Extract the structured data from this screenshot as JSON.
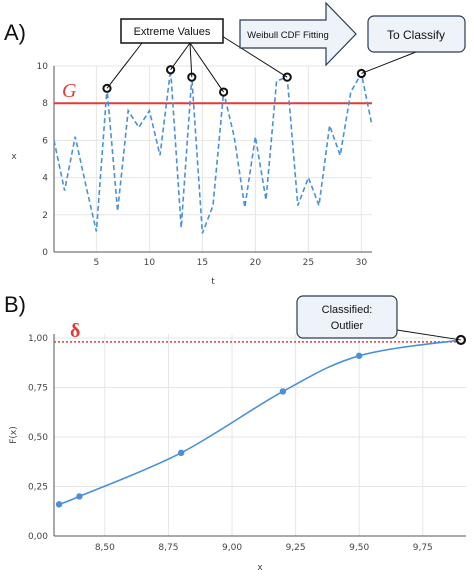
{
  "colors": {
    "series": "#4a90d9",
    "threshold": "#e53935",
    "grid": "#e6e6e6",
    "axis": "#555555",
    "marker": "#111111",
    "box_fill": "#eef3fa",
    "box_stroke": "#2b3a55"
  },
  "panel_a": {
    "label": "A)",
    "threshold_label": "G",
    "callouts": {
      "extreme_values": "Extreme Values",
      "weibull_fitting": "Weibull CDF Fitting",
      "to_classify": "To Classify"
    }
  },
  "panel_b": {
    "label": "B)",
    "threshold_label": "δ",
    "callout_line1": "Classified:",
    "callout_line2": "Outlier"
  },
  "chart_data": [
    {
      "type": "line",
      "xlabel": "t",
      "ylabel": "x",
      "xlim": [
        1,
        31
      ],
      "ylim": [
        0,
        10
      ],
      "x_ticks": [
        5,
        10,
        15,
        20,
        25,
        30
      ],
      "y_ticks": [
        0,
        2,
        4,
        6,
        8,
        10
      ],
      "grid": true,
      "line_style": "dashed",
      "x": [
        1,
        2,
        3,
        4,
        5,
        6,
        7,
        8,
        9,
        10,
        11,
        12,
        13,
        14,
        15,
        16,
        17,
        18,
        19,
        20,
        21,
        22,
        23,
        24,
        25,
        26,
        27,
        28,
        29,
        30,
        31
      ],
      "values": [
        6.0,
        3.3,
        6.2,
        3.6,
        1.1,
        8.8,
        2.2,
        7.6,
        6.7,
        7.6,
        5.2,
        9.8,
        1.3,
        9.4,
        1.0,
        2.5,
        8.6,
        6.2,
        2.4,
        6.2,
        2.8,
        9.2,
        9.4,
        2.5,
        4.0,
        2.5,
        6.8,
        5.2,
        8.6,
        9.6,
        6.8
      ],
      "threshold": 8.0,
      "highlighted_x": [
        6,
        12,
        14,
        17,
        23,
        30
      ]
    },
    {
      "type": "line",
      "xlabel": "x",
      "ylabel": "F(x)",
      "xlim": [
        8.3,
        9.92
      ],
      "ylim": [
        0,
        1.02
      ],
      "x_ticks": [
        "8,50",
        "8,75",
        "9,00",
        "9,25",
        "9,50",
        "9,75"
      ],
      "x_tick_values": [
        8.5,
        8.75,
        9.0,
        9.25,
        9.5,
        9.75
      ],
      "y_ticks": [
        "0,00",
        "0,25",
        "0,50",
        "0,75",
        "1,00"
      ],
      "y_tick_values": [
        0,
        0.25,
        0.5,
        0.75,
        1.0
      ],
      "grid": true,
      "x": [
        8.32,
        8.4,
        8.8,
        9.2,
        9.5,
        9.9
      ],
      "values": [
        0.16,
        0.2,
        0.42,
        0.73,
        0.91,
        0.99
      ],
      "threshold": 0.98,
      "highlighted_x": [
        9.9
      ]
    }
  ]
}
